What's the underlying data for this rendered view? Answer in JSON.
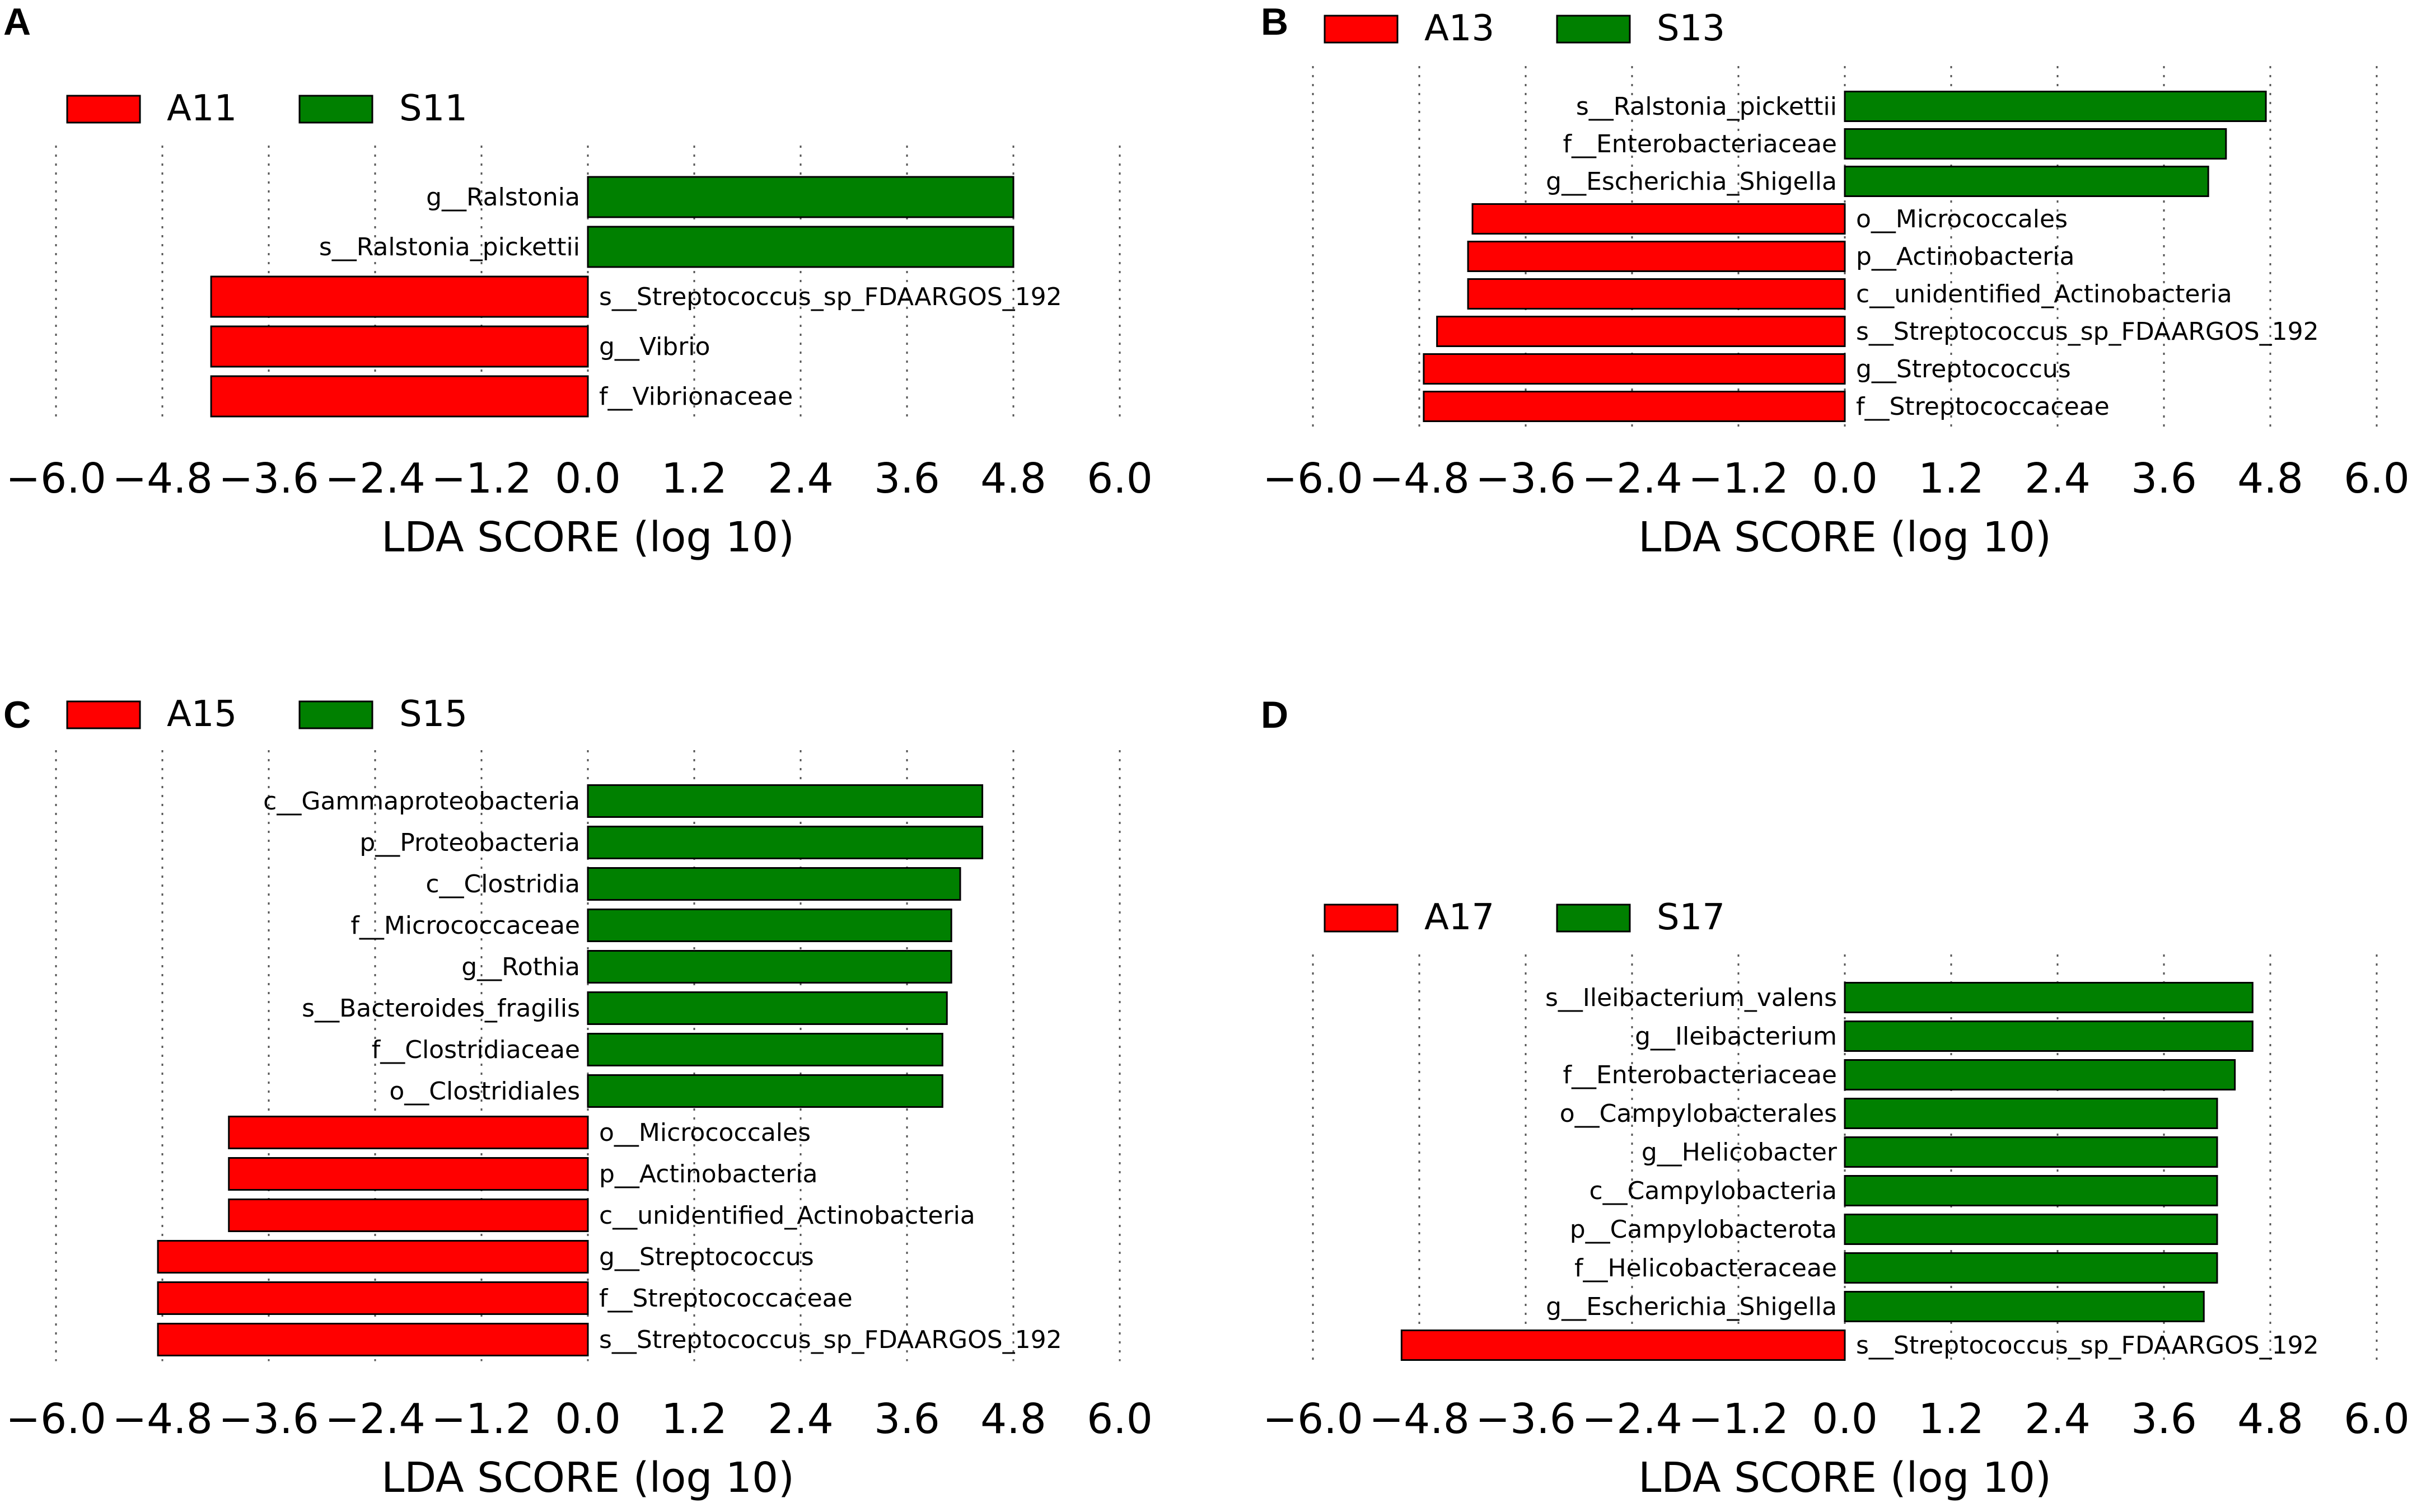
{
  "colors": {
    "A": "#ff0000",
    "S": "#008000"
  },
  "chart_data": [
    {
      "panel": "A",
      "type": "bar",
      "orientation": "horizontal",
      "title": "",
      "xlabel": "LDA SCORE (log 10)",
      "ylabel": "",
      "xlim": [
        -6.0,
        6.0
      ],
      "xticks": [
        "−6.0",
        "−4.8",
        "−3.6",
        "−2.4",
        "−1.2",
        "0.0",
        "1.2",
        "2.4",
        "3.6",
        "4.8",
        "6.0"
      ],
      "legend": [
        {
          "name": "A11",
          "color": "#ff0000"
        },
        {
          "name": "S11",
          "color": "#008000"
        }
      ],
      "grid": true,
      "bars": [
        {
          "label": "g__Ralstonia",
          "value": 4.8,
          "group": "S11"
        },
        {
          "label": "s__Ralstonia_pickettii",
          "value": 4.8,
          "group": "S11"
        },
        {
          "label": "s__Streptococcus_sp_FDAARGOS_192",
          "value": -4.25,
          "group": "A11"
        },
        {
          "label": "g__Vibrio",
          "value": -4.25,
          "group": "A11"
        },
        {
          "label": "f__Vibrionaceae",
          "value": -4.25,
          "group": "A11"
        }
      ]
    },
    {
      "panel": "B",
      "type": "bar",
      "orientation": "horizontal",
      "title": "",
      "xlabel": "LDA SCORE (log 10)",
      "ylabel": "",
      "xlim": [
        -6.0,
        6.0
      ],
      "xticks": [
        "−6.0",
        "−4.8",
        "−3.6",
        "−2.4",
        "−1.2",
        "0.0",
        "1.2",
        "2.4",
        "3.6",
        "4.8",
        "6.0"
      ],
      "legend": [
        {
          "name": "A13",
          "color": "#ff0000"
        },
        {
          "name": "S13",
          "color": "#008000"
        }
      ],
      "grid": true,
      "bars": [
        {
          "label": "s__Ralstonia_pickettii",
          "value": 4.75,
          "group": "S13"
        },
        {
          "label": "f__Enterobacteriaceae",
          "value": 4.3,
          "group": "S13"
        },
        {
          "label": "g__Escherichia_Shigella",
          "value": 4.1,
          "group": "S13"
        },
        {
          "label": "o__Micrococcales",
          "value": -4.2,
          "group": "A13"
        },
        {
          "label": "p__Actinobacteria",
          "value": -4.25,
          "group": "A13"
        },
        {
          "label": "c__unidentified_Actinobacteria",
          "value": -4.25,
          "group": "A13"
        },
        {
          "label": "s__Streptococcus_sp_FDAARGOS_192",
          "value": -4.6,
          "group": "A13"
        },
        {
          "label": "g__Streptococcus",
          "value": -4.75,
          "group": "A13"
        },
        {
          "label": "f__Streptococcaceae",
          "value": -4.75,
          "group": "A13"
        }
      ]
    },
    {
      "panel": "C",
      "type": "bar",
      "orientation": "horizontal",
      "title": "",
      "xlabel": "LDA SCORE (log 10)",
      "ylabel": "",
      "xlim": [
        -6.0,
        6.0
      ],
      "xticks": [
        "−6.0",
        "−4.8",
        "−3.6",
        "−2.4",
        "−1.2",
        "0.0",
        "1.2",
        "2.4",
        "3.6",
        "4.8",
        "6.0"
      ],
      "legend": [
        {
          "name": "A15",
          "color": "#ff0000"
        },
        {
          "name": "S15",
          "color": "#008000"
        }
      ],
      "grid": true,
      "bars": [
        {
          "label": "c__Gammaproteobacteria",
          "value": 4.45,
          "group": "S15"
        },
        {
          "label": "p__Proteobacteria",
          "value": 4.45,
          "group": "S15"
        },
        {
          "label": "c__Clostridia",
          "value": 4.2,
          "group": "S15"
        },
        {
          "label": "f__Micrococcaceae",
          "value": 4.1,
          "group": "S15"
        },
        {
          "label": "g__Rothia",
          "value": 4.1,
          "group": "S15"
        },
        {
          "label": "s__Bacteroides_fragilis",
          "value": 4.05,
          "group": "S15"
        },
        {
          "label": "f__Clostridiaceae",
          "value": 4.0,
          "group": "S15"
        },
        {
          "label": "o__Clostridiales",
          "value": 4.0,
          "group": "S15"
        },
        {
          "label": "o__Micrococcales",
          "value": -4.05,
          "group": "A15"
        },
        {
          "label": "p__Actinobacteria",
          "value": -4.05,
          "group": "A15"
        },
        {
          "label": "c__unidentified_Actinobacteria",
          "value": -4.05,
          "group": "A15"
        },
        {
          "label": "g__Streptococcus",
          "value": -4.85,
          "group": "A15"
        },
        {
          "label": "f__Streptococcaceae",
          "value": -4.85,
          "group": "A15"
        },
        {
          "label": "s__Streptococcus_sp_FDAARGOS_192",
          "value": -4.85,
          "group": "A15"
        }
      ]
    },
    {
      "panel": "D",
      "type": "bar",
      "orientation": "horizontal",
      "title": "",
      "xlabel": "LDA SCORE (log 10)",
      "ylabel": "",
      "xlim": [
        -6.0,
        6.0
      ],
      "xticks": [
        "−6.0",
        "−4.8",
        "−3.6",
        "−2.4",
        "−1.2",
        "0.0",
        "1.2",
        "2.4",
        "3.6",
        "4.8",
        "6.0"
      ],
      "legend": [
        {
          "name": "A17",
          "color": "#ff0000"
        },
        {
          "name": "S17",
          "color": "#008000"
        }
      ],
      "grid": true,
      "bars": [
        {
          "label": "s__Ileibacterium_valens",
          "value": 4.6,
          "group": "S17"
        },
        {
          "label": "g__Ileibacterium",
          "value": 4.6,
          "group": "S17"
        },
        {
          "label": "f__Enterobacteriaceae",
          "value": 4.4,
          "group": "S17"
        },
        {
          "label": "o__Campylobacterales",
          "value": 4.2,
          "group": "S17"
        },
        {
          "label": "g__Helicobacter",
          "value": 4.2,
          "group": "S17"
        },
        {
          "label": "c__Campylobacteria",
          "value": 4.2,
          "group": "S17"
        },
        {
          "label": "p__Campylobacterota",
          "value": 4.2,
          "group": "S17"
        },
        {
          "label": "f__Helicobacteraceae",
          "value": 4.2,
          "group": "S17"
        },
        {
          "label": "g__Escherichia_Shigella",
          "value": 4.05,
          "group": "S17"
        },
        {
          "label": "s__Streptococcus_sp_FDAARGOS_192",
          "value": -5.0,
          "group": "A17"
        }
      ]
    }
  ]
}
